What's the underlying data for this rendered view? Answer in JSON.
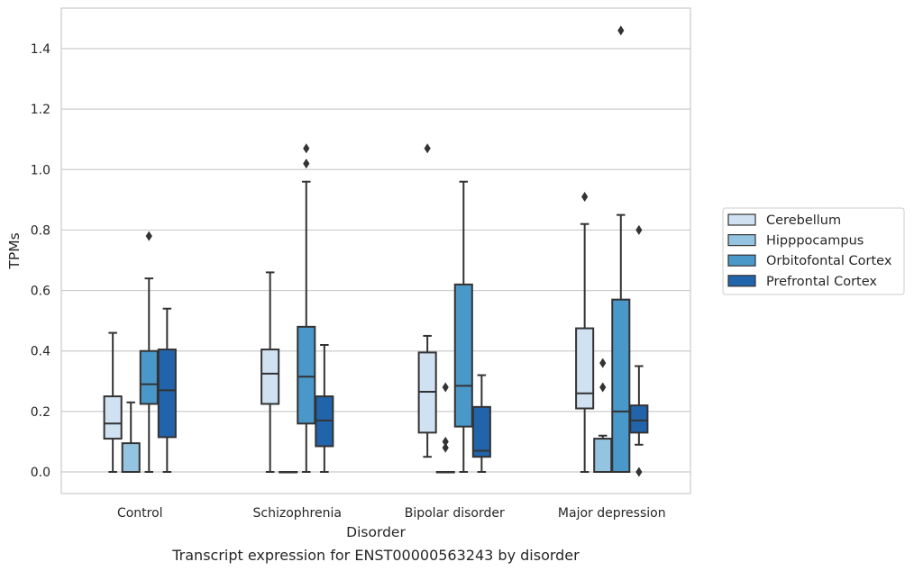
{
  "chart_data": {
    "type": "boxplot",
    "xlabel": "Disorder",
    "ylabel": "TPMs",
    "caption": "Transcript expression for ENST00000563243 by disorder",
    "ylim": [
      -0.07,
      1.54
    ],
    "yticks": [
      "0.0",
      "0.2",
      "0.4",
      "0.6",
      "0.8",
      "1.0",
      "1.2",
      "1.4"
    ],
    "grid": "horizontal",
    "legend_position": "right",
    "categories": [
      "Control",
      "Schizophrenia",
      "Bipolar disorder",
      "Major depression"
    ],
    "series": [
      {
        "name": "Cerebellum",
        "color": "#d0e1f2",
        "boxes": [
          {
            "whislo": 0.0,
            "q1": 0.11,
            "med": 0.16,
            "q3": 0.25,
            "whishi": 0.46,
            "fliers": []
          },
          {
            "whislo": 0.0,
            "q1": 0.225,
            "med": 0.325,
            "q3": 0.405,
            "whishi": 0.66,
            "fliers": []
          },
          {
            "whislo": 0.05,
            "q1": 0.13,
            "med": 0.265,
            "q3": 0.395,
            "whishi": 0.45,
            "fliers": [
              1.07
            ]
          },
          {
            "whislo": 0.0,
            "q1": 0.21,
            "med": 0.26,
            "q3": 0.475,
            "whishi": 0.82,
            "fliers": [
              0.91
            ]
          }
        ]
      },
      {
        "name": "Hipppocampus",
        "color": "#94c4df",
        "boxes": [
          {
            "whislo": 0.0,
            "q1": 0.0,
            "med": 0.0,
            "q3": 0.095,
            "whishi": 0.23,
            "fliers": []
          },
          {
            "whislo": 0.0,
            "q1": 0.0,
            "med": 0.0,
            "q3": 0.0,
            "whishi": 0.0,
            "fliers": []
          },
          {
            "whislo": 0.0,
            "q1": 0.0,
            "med": 0.0,
            "q3": 0.0,
            "whishi": 0.0,
            "fliers": [
              0.28,
              0.1,
              0.08
            ]
          },
          {
            "whislo": 0.0,
            "q1": 0.0,
            "med": 0.0,
            "q3": 0.11,
            "whishi": 0.12,
            "fliers": [
              0.36,
              0.28
            ]
          }
        ]
      },
      {
        "name": "Orbitofontal Cortex",
        "color": "#4a98c9",
        "boxes": [
          {
            "whislo": 0.0,
            "q1": 0.225,
            "med": 0.29,
            "q3": 0.4,
            "whishi": 0.64,
            "fliers": [
              0.78
            ]
          },
          {
            "whislo": 0.0,
            "q1": 0.16,
            "med": 0.315,
            "q3": 0.48,
            "whishi": 0.96,
            "fliers": [
              1.07,
              1.02
            ]
          },
          {
            "whislo": 0.0,
            "q1": 0.15,
            "med": 0.285,
            "q3": 0.62,
            "whishi": 0.96,
            "fliers": []
          },
          {
            "whislo": 0.0,
            "q1": 0.0,
            "med": 0.2,
            "q3": 0.57,
            "whishi": 0.85,
            "fliers": [
              1.46
            ]
          }
        ]
      },
      {
        "name": "Prefrontal Cortex",
        "color": "#2264ab",
        "boxes": [
          {
            "whislo": 0.0,
            "q1": 0.115,
            "med": 0.27,
            "q3": 0.405,
            "whishi": 0.54,
            "fliers": []
          },
          {
            "whislo": 0.0,
            "q1": 0.085,
            "med": 0.17,
            "q3": 0.25,
            "whishi": 0.42,
            "fliers": []
          },
          {
            "whislo": 0.0,
            "q1": 0.05,
            "med": 0.07,
            "q3": 0.215,
            "whishi": 0.32,
            "fliers": []
          },
          {
            "whislo": 0.09,
            "q1": 0.13,
            "med": 0.17,
            "q3": 0.22,
            "whishi": 0.35,
            "fliers": [
              0.8,
              0.0
            ]
          }
        ]
      }
    ]
  }
}
